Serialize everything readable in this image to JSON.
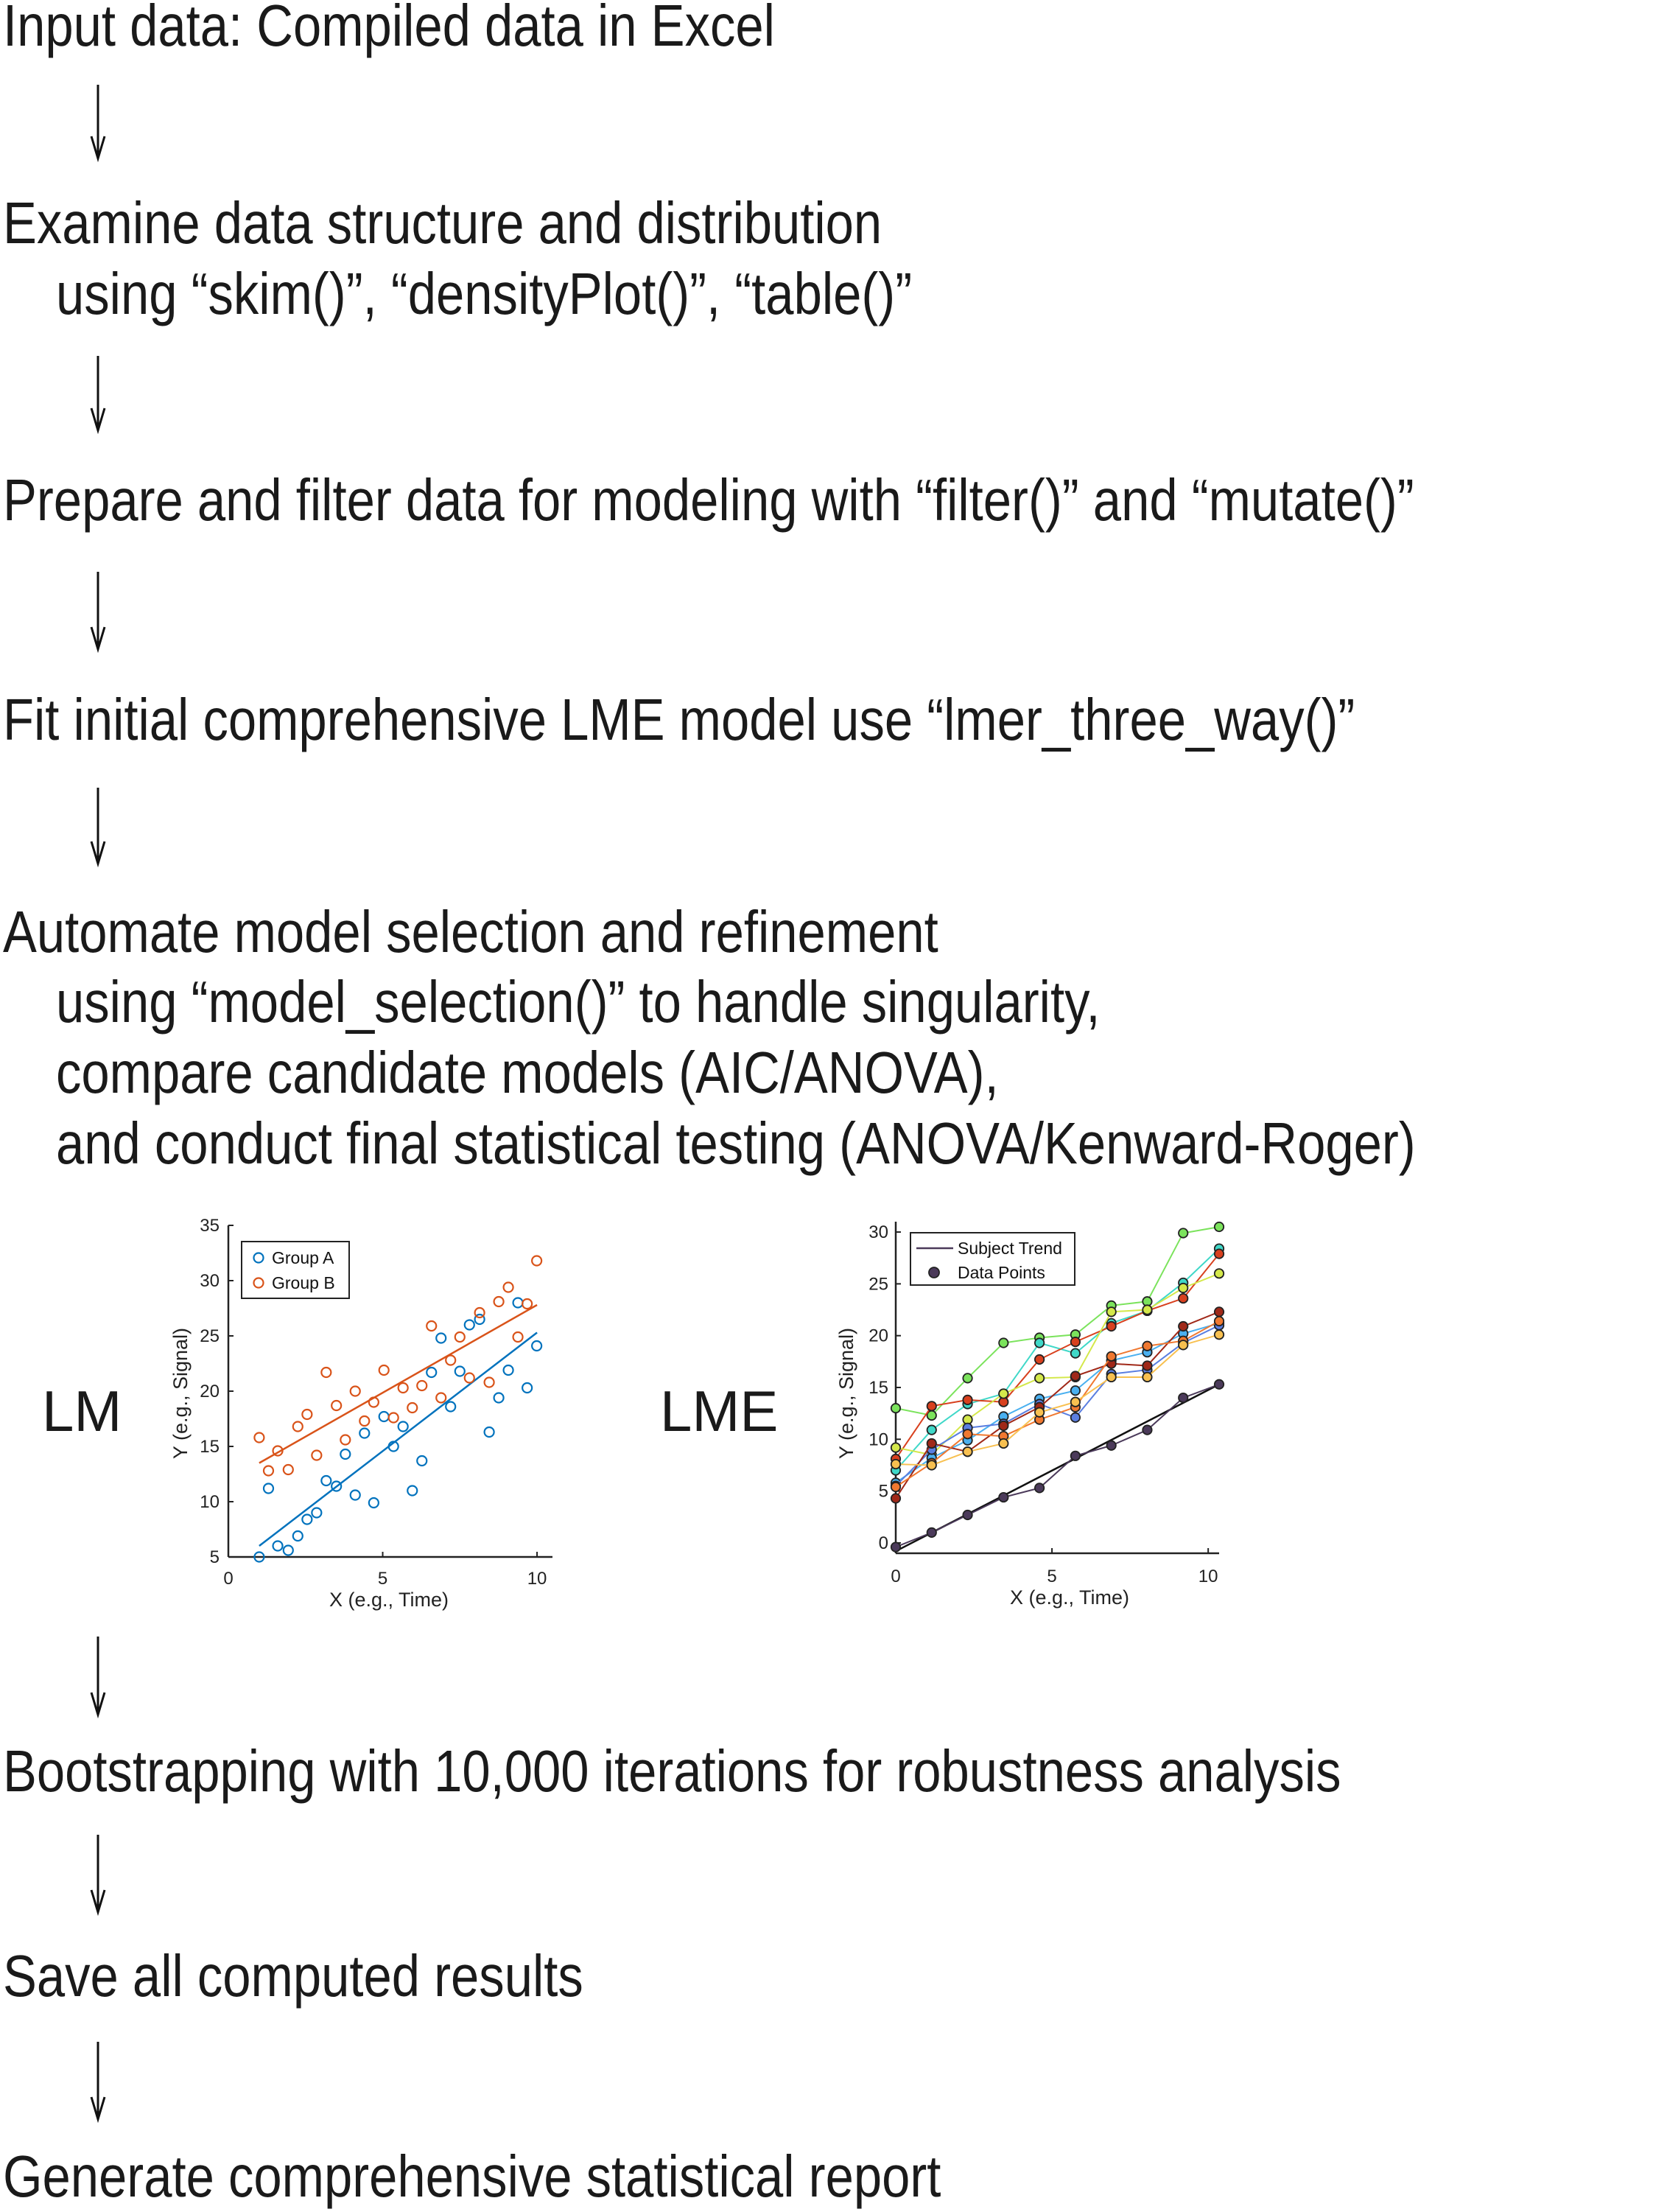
{
  "steps": [
    {
      "lines": [
        "Input data: Compiled data in Excel"
      ]
    },
    {
      "lines": [
        "Examine data structure and distribution",
        "using “skim()”, “densityPlot()”, “table()”"
      ]
    },
    {
      "lines": [
        "Prepare and filter data for modeling with “filter()” and “mutate()”"
      ]
    },
    {
      "lines": [
        "Fit initial comprehensive LME model use “lmer_three_way()”"
      ]
    },
    {
      "lines": [
        "Automate model selection and refinement",
        "using “model_selection()” to handle singularity,",
        "compare candidate models (AIC/ANOVA),",
        "and conduct final statistical testing (ANOVA/Kenward-Roger)"
      ]
    },
    {
      "lines": [
        "Bootstrapping with 10,000 iterations for robustness analysis"
      ]
    },
    {
      "lines": [
        "Save all computed results"
      ]
    },
    {
      "lines": [
        "Generate comprehensive statistical report"
      ]
    }
  ],
  "panel_labels": {
    "lm": "LM",
    "lme": "LME"
  },
  "chart_data": [
    {
      "type": "scatter",
      "xlabel": "X (e.g., Time)",
      "ylabel": "Y (e.g., Signal)",
      "xlim": [
        0,
        10.5
      ],
      "ylim": [
        5,
        35
      ],
      "xticks": [
        "0",
        "5",
        "10"
      ],
      "yticks": [
        "5",
        "10",
        "15",
        "20",
        "25",
        "30",
        "35"
      ],
      "grid": false,
      "legend": "top-left",
      "series": [
        {
          "name": "Group A",
          "color": "#0072BD",
          "marker": "open-circle",
          "x": [
            1.0,
            1.3,
            1.6,
            1.94,
            2.25,
            2.55,
            2.86,
            3.17,
            3.5,
            3.79,
            4.11,
            4.41,
            4.71,
            5.04,
            5.35,
            5.66,
            5.96,
            6.27,
            6.58,
            6.89,
            7.2,
            7.5,
            7.81,
            8.14,
            8.45,
            8.76,
            9.07,
            9.38,
            9.68,
            9.99
          ],
          "y": [
            5,
            11.2,
            6,
            5.6,
            6.9,
            8.4,
            9,
            11.9,
            11.4,
            14.3,
            10.6,
            16.2,
            9.9,
            17.7,
            15,
            16.8,
            11,
            13.7,
            21.7,
            24.8,
            18.6,
            21.8,
            26,
            26.5,
            16.3,
            19.4,
            21.9,
            28,
            20.3,
            24.1
          ],
          "fit": [
            [
              1,
              6
            ],
            [
              10,
              25.3
            ]
          ]
        },
        {
          "name": "Group B",
          "color": "#D95319",
          "marker": "open-circle",
          "x": [
            1.0,
            1.3,
            1.6,
            1.94,
            2.25,
            2.55,
            2.86,
            3.17,
            3.5,
            3.79,
            4.11,
            4.41,
            4.71,
            5.04,
            5.35,
            5.66,
            5.96,
            6.27,
            6.58,
            6.89,
            7.2,
            7.5,
            7.81,
            8.14,
            8.45,
            8.76,
            9.07,
            9.38,
            9.68,
            9.99
          ],
          "y": [
            15.8,
            12.8,
            14.6,
            12.9,
            16.8,
            17.9,
            14.2,
            21.7,
            18.7,
            15.6,
            20,
            17.3,
            19,
            21.9,
            17.6,
            20.3,
            18.5,
            20.5,
            25.9,
            19.4,
            22.8,
            24.9,
            21.2,
            27.1,
            20.8,
            28.1,
            29.4,
            24.9,
            27.9,
            31.8
          ],
          "fit": [
            [
              1,
              13.5
            ],
            [
              10,
              27.8
            ]
          ]
        }
      ]
    },
    {
      "type": "line",
      "xlabel": "X (e.g., Time)",
      "ylabel": "Y (e.g., Signal)",
      "xlim": [
        0,
        10.35
      ],
      "ylim": [
        -1,
        31
      ],
      "xticks": [
        "0",
        "5",
        "10"
      ],
      "yticks": [
        "0",
        "5",
        "10",
        "15",
        "20",
        "25",
        "30"
      ],
      "grid": false,
      "legend": "top-left",
      "legend_entries": [
        "Subject Trend",
        "Data Points"
      ],
      "legend_color": "#4b3a5a",
      "x": [
        0,
        1.15,
        2.3,
        3.45,
        4.6,
        5.75,
        6.9,
        8.05,
        9.2,
        10.35
      ],
      "series": [
        {
          "color": "#7be35c",
          "y": [
            13,
            12.3,
            15.9,
            19.3,
            19.8,
            20.1,
            22.9,
            23.3,
            29.9,
            30.5
          ]
        },
        {
          "color": "#3fd8c8",
          "y": [
            7,
            10.9,
            13.4,
            14.4,
            19.3,
            18.3,
            21.2,
            22.4,
            25.1,
            28.4
          ]
        },
        {
          "color": "#d8401e",
          "y": [
            8.1,
            13.2,
            13.8,
            13.6,
            17.7,
            19.4,
            20.9,
            22.4,
            23.6,
            27.9
          ]
        },
        {
          "color": "#d4e84a",
          "y": [
            9.2,
            8.5,
            11.9,
            14.4,
            15.9,
            16,
            22.3,
            22.5,
            24.6,
            26
          ]
        },
        {
          "color": "#4ab0f0",
          "y": [
            5.8,
            8.2,
            9.9,
            12.2,
            13.9,
            14.7,
            17.6,
            18.4,
            20.2,
            21.2
          ]
        },
        {
          "color": "#5a7ee0",
          "y": [
            5.5,
            9,
            11.1,
            11.5,
            13.4,
            12.1,
            16.3,
            16.7,
            19.3,
            21
          ]
        },
        {
          "color": "#a02818",
          "y": [
            4.3,
            9.6,
            8.8,
            11.3,
            13.1,
            16.1,
            17.3,
            17.1,
            20.9,
            22.3
          ]
        },
        {
          "color": "#f07830",
          "y": [
            5.4,
            7.7,
            10.5,
            10.3,
            11.9,
            13.1,
            18,
            19,
            19.5,
            21.4
          ]
        },
        {
          "color": "#f8c050",
          "y": [
            7.6,
            7.5,
            8.8,
            9.6,
            12.6,
            13.6,
            16,
            16,
            19.1,
            20.1
          ]
        },
        {
          "color": "#4b3a5a",
          "y": [
            -0.4,
            1.0,
            2.7,
            4.4,
            5.3,
            8.4,
            9.4,
            10.9,
            14,
            15.3
          ],
          "trend": [
            [
              0,
              -0.8
            ],
            [
              10.35,
              15.3
            ]
          ]
        }
      ]
    }
  ]
}
